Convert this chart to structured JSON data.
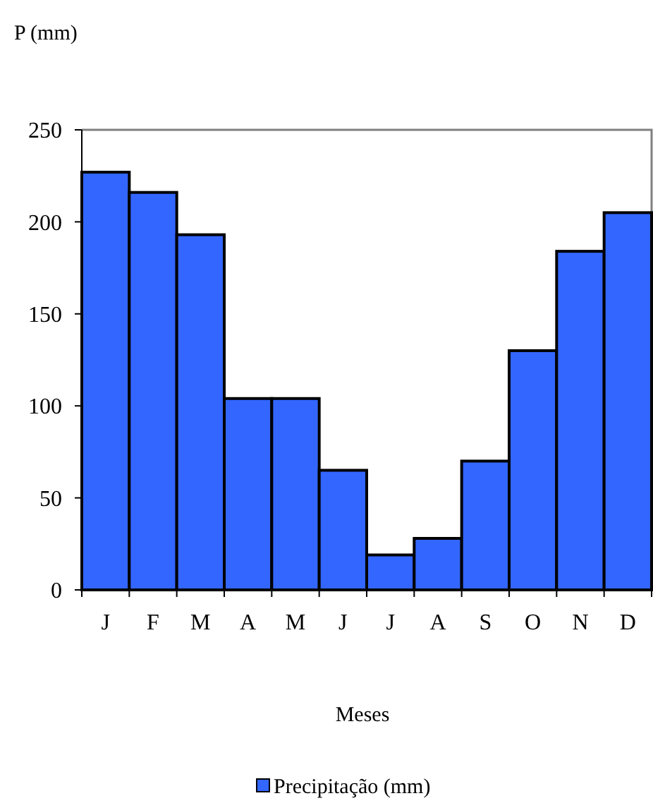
{
  "chart_data": {
    "type": "bar",
    "ylabel": "P (mm)",
    "xlabel": "Meses",
    "categories": [
      "J",
      "F",
      "M",
      "A",
      "M",
      "J",
      "J",
      "A",
      "S",
      "O",
      "N",
      "D"
    ],
    "series": [
      {
        "name": "Precipitação (mm)",
        "color": "#3366ff",
        "values": [
          227,
          216,
          193,
          104,
          104,
          65,
          19,
          28,
          70,
          130,
          184,
          205
        ]
      }
    ],
    "ylim": [
      0,
      250
    ],
    "yticks": [
      0,
      50,
      100,
      150,
      200,
      250
    ],
    "grid": false,
    "legend": "bottom"
  }
}
